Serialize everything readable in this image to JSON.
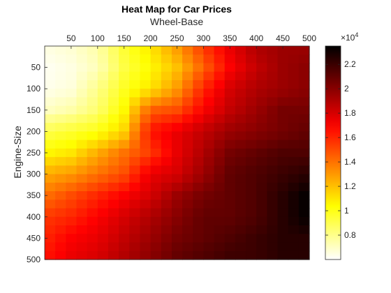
{
  "chart_data": {
    "type": "heatmap",
    "title": "Heat Map for Car Prices",
    "xlabel": "Wheel-Base",
    "ylabel": "Engine-Size",
    "xlim": [
      0,
      500
    ],
    "ylim": [
      0,
      500
    ],
    "x_axis_location": "top",
    "y_axis_reversed": true,
    "xticks": [
      50,
      100,
      150,
      200,
      250,
      300,
      350,
      400,
      450,
      500
    ],
    "yticks": [
      50,
      100,
      150,
      200,
      250,
      300,
      350,
      400,
      450,
      500
    ],
    "colorbar": {
      "min": 0.6,
      "max": 2.35,
      "exponent_label": "×10",
      "exponent": "4",
      "ticks": [
        0.8,
        1,
        1.2,
        1.4,
        1.6,
        1.8,
        2,
        2.2
      ],
      "tick_labels": [
        "0.8",
        "1",
        "1.2",
        "1.4",
        "1.6",
        "1.8",
        "2",
        "2.2"
      ],
      "colormap": "hot (reversed)"
    },
    "grid": {
      "x": [
        0,
        50,
        100,
        150,
        200,
        250,
        300,
        350,
        400,
        450,
        500
      ],
      "y": [
        0,
        50,
        100,
        150,
        200,
        250,
        300,
        350,
        400,
        450,
        500
      ],
      "values": [
        [
          0.65,
          0.68,
          0.75,
          0.95,
          1.1,
          1.3,
          1.55,
          1.75,
          1.9,
          1.95,
          1.95
        ],
        [
          0.62,
          0.65,
          0.72,
          0.92,
          1.05,
          1.2,
          1.45,
          1.7,
          1.85,
          1.95,
          2.0
        ],
        [
          0.63,
          0.66,
          0.8,
          0.98,
          1.1,
          1.3,
          1.6,
          1.8,
          1.9,
          1.95,
          2.0
        ],
        [
          0.7,
          0.75,
          0.85,
          1.05,
          1.45,
          1.5,
          1.7,
          1.85,
          1.95,
          2.05,
          2.05
        ],
        [
          0.9,
          0.95,
          1.0,
          1.15,
          1.65,
          1.75,
          1.85,
          1.95,
          2.0,
          2.05,
          2.1
        ],
        [
          1.05,
          1.1,
          1.25,
          1.4,
          1.55,
          1.75,
          1.9,
          2.05,
          2.1,
          2.15,
          2.15
        ],
        [
          1.25,
          1.3,
          1.4,
          1.5,
          1.75,
          1.8,
          1.95,
          2.1,
          2.15,
          2.2,
          2.25
        ],
        [
          1.4,
          1.5,
          1.6,
          1.7,
          1.8,
          1.95,
          2.05,
          2.1,
          2.15,
          2.25,
          2.35
        ],
        [
          1.55,
          1.6,
          1.7,
          1.8,
          1.9,
          2.0,
          2.1,
          2.1,
          2.15,
          2.25,
          2.35
        ],
        [
          1.6,
          1.7,
          1.75,
          1.85,
          1.95,
          2.05,
          2.1,
          2.15,
          2.2,
          2.25,
          2.25
        ],
        [
          1.65,
          1.75,
          1.8,
          1.9,
          2.0,
          2.1,
          2.15,
          2.2,
          2.2,
          2.25,
          2.25
        ]
      ]
    }
  }
}
